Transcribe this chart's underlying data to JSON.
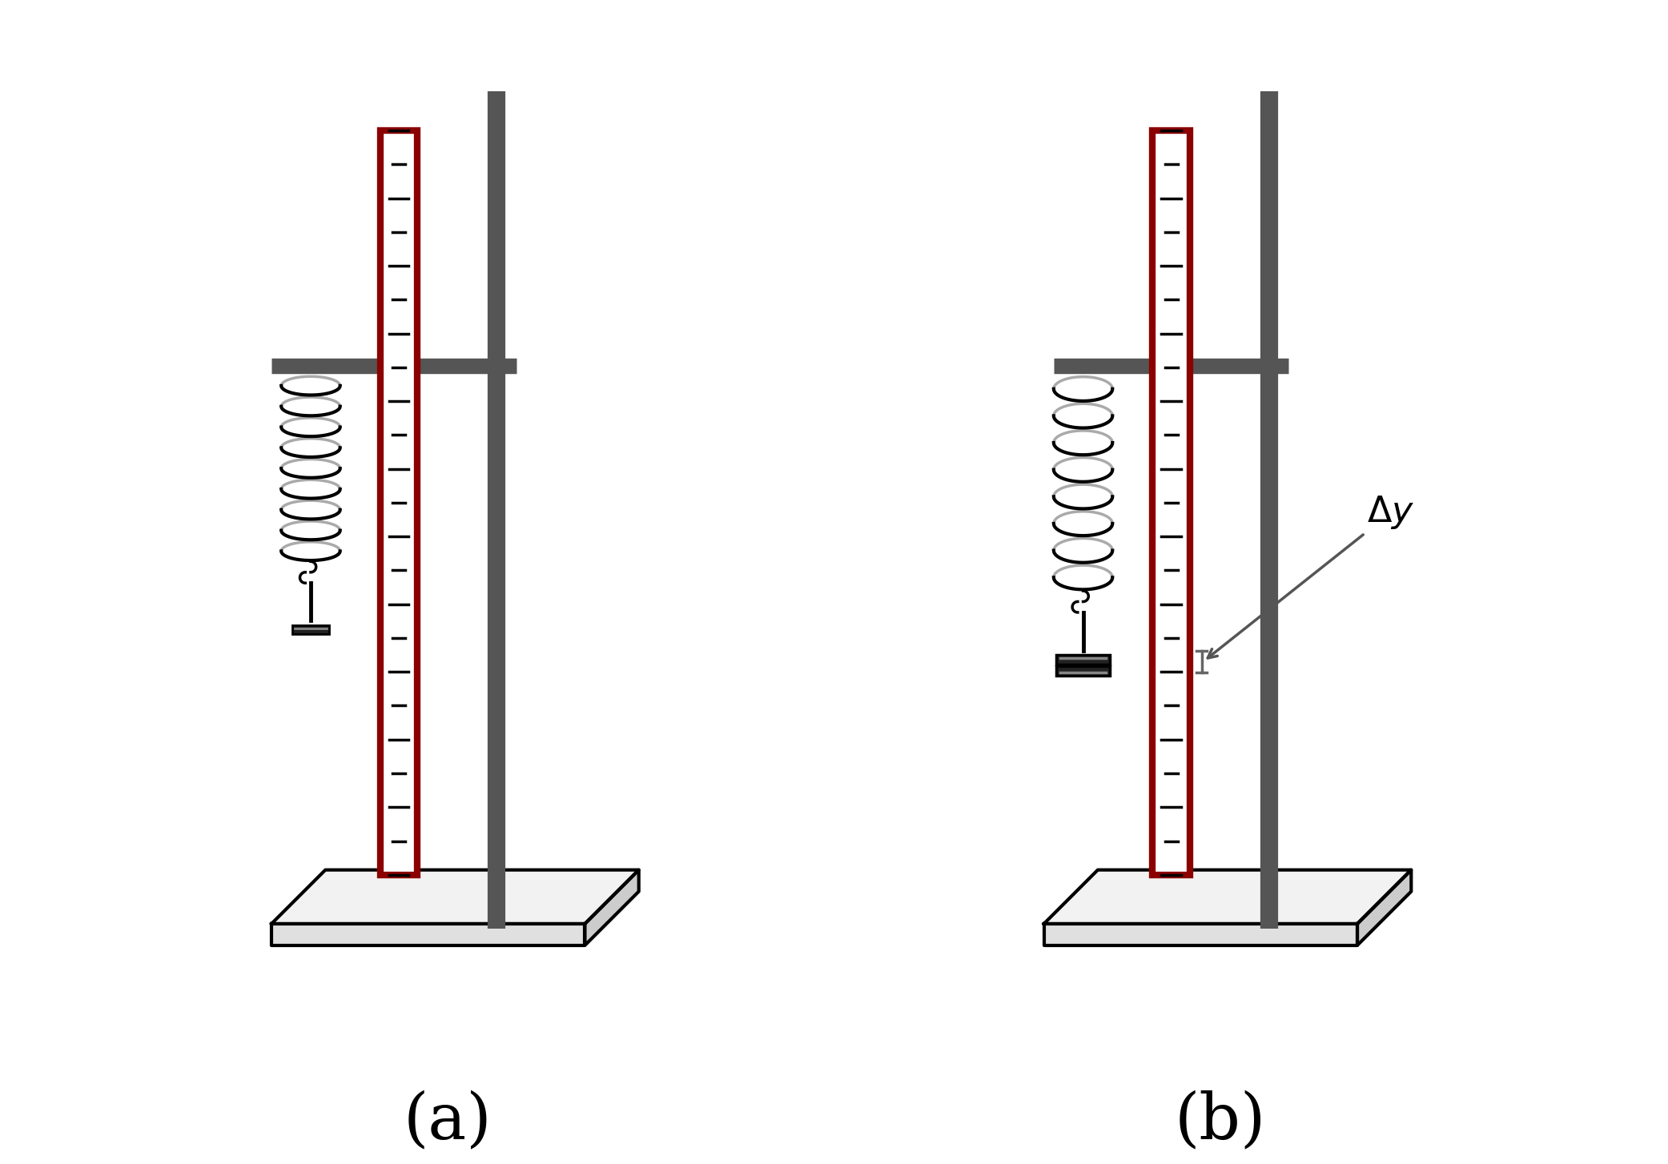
{
  "fig_width": 20.83,
  "fig_height": 14.54,
  "bg_color": "#ffffff",
  "label_a": "(a)",
  "label_b": "(b)",
  "ruler_color": "#8B0000",
  "stand_color": "#555555",
  "tick_color": "#111111",
  "annotation_color": "#555555"
}
